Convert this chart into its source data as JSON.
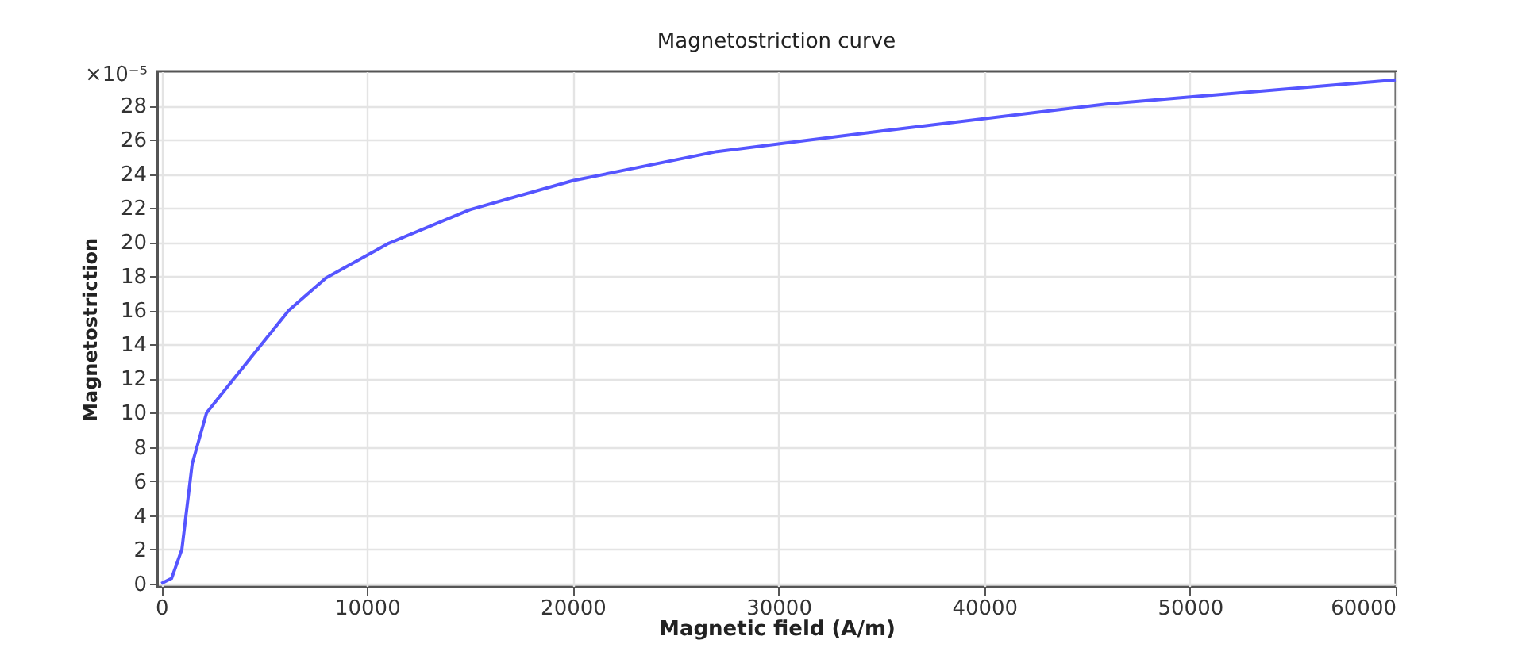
{
  "chart_data": {
    "type": "line",
    "title": "Magnetostriction curve",
    "xlabel": "Magnetic field (A/m)",
    "ylabel": "Magnetostriction",
    "annotations": [
      "×10⁻⁵"
    ],
    "x": [
      0,
      500,
      1000,
      1500,
      2200,
      5000,
      6200,
      8000,
      11000,
      15000,
      20000,
      27000,
      35000,
      46000,
      60000
    ],
    "series": [
      {
        "color": "#5555ff",
        "values": [
          0,
          0.3,
          2,
          7,
          10,
          14.2,
          16,
          17.9,
          19.9,
          21.9,
          23.6,
          25.3,
          26.5,
          28.1,
          29.5
        ]
      }
    ],
    "xlim": [
      -200,
      60000
    ],
    "ylim": [
      -0.2,
      30
    ],
    "xticks": [
      0,
      10000,
      20000,
      30000,
      40000,
      50000,
      60000
    ],
    "yticks": [
      0,
      2,
      4,
      6,
      8,
      10,
      12,
      14,
      16,
      18,
      20,
      22,
      24,
      26,
      28
    ],
    "grid": true,
    "marker": "none",
    "line_style": "solid"
  }
}
